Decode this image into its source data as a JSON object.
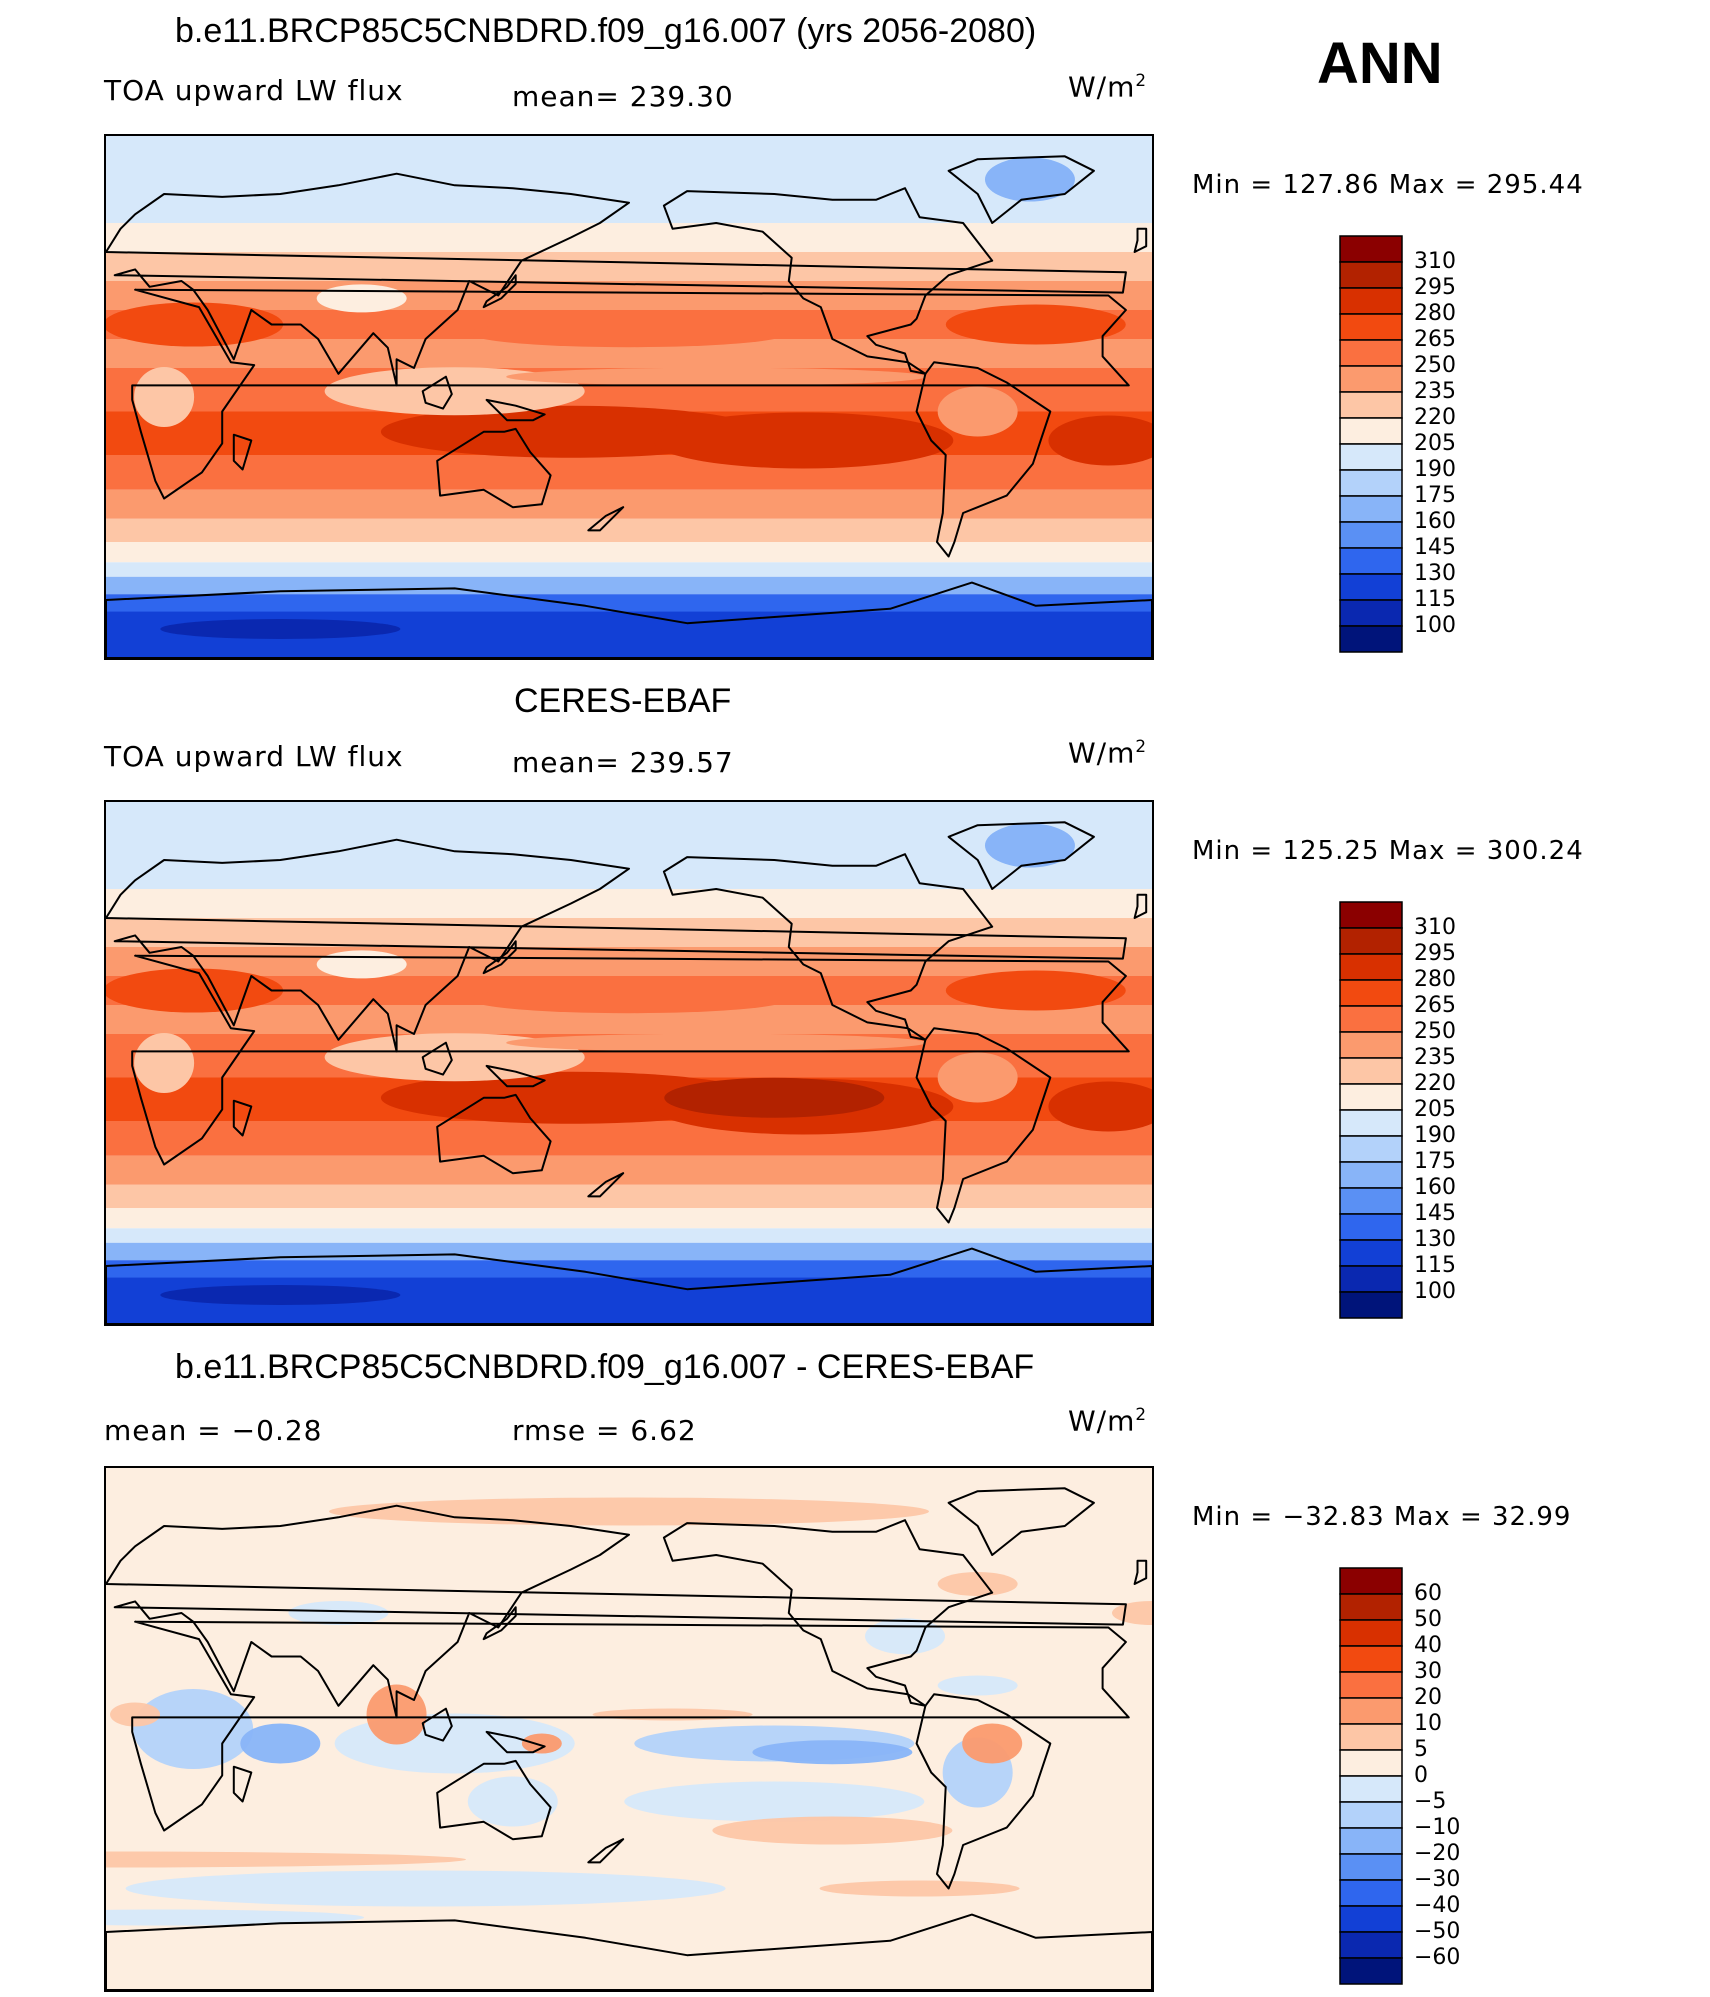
{
  "annotation": "ANN",
  "units_main": "W/m",
  "units_sup": "2",
  "panels": [
    {
      "title": "b.e11.BRCP85C5CNBDRD.f09_g16.007 (yrs 2056-2080)",
      "left_label": "TOA upward LW flux",
      "center_label": "mean= 239.30",
      "minmax": "Min  =  127.86  Max  =  295.44",
      "type": "abs"
    },
    {
      "title": "CERES-EBAF",
      "left_label": "TOA upward LW flux",
      "center_label": "mean= 239.57",
      "minmax": "Min  =  125.25  Max  =  300.24",
      "type": "abs"
    },
    {
      "title": "b.e11.BRCP85C5CNBDRD.f09_g16.007 - CERES-EBAF",
      "left_label": "mean =    −0.28",
      "center_label": "rmse =     6.62",
      "minmax": "Min  =  −32.83  Max  =    32.99",
      "type": "diff"
    }
  ],
  "colorbars": {
    "abs": {
      "labels": [
        "310",
        "295",
        "280",
        "265",
        "250",
        "235",
        "220",
        "205",
        "190",
        "175",
        "160",
        "145",
        "130",
        "115",
        "100"
      ],
      "colors": [
        "#8b0000",
        "#b22200",
        "#d83000",
        "#f24a10",
        "#fa7040",
        "#fb9a6e",
        "#fdc6a6",
        "#fdeee0",
        "#d6e8fa",
        "#b3d2fa",
        "#88b4f8",
        "#5a90f4",
        "#2f66ee",
        "#1240d6",
        "#0a28b0",
        "#00147a"
      ]
    },
    "diff": {
      "labels": [
        "60",
        "50",
        "40",
        "30",
        "20",
        "10",
        "5",
        "0",
        "−5",
        "−10",
        "−20",
        "−30",
        "−40",
        "−50",
        "−60"
      ],
      "colors": [
        "#8b0000",
        "#b22200",
        "#d83000",
        "#f24a10",
        "#fa7040",
        "#fb9a6e",
        "#fdc6a6",
        "#fdeee0",
        "#d6e8fa",
        "#b3d2fa",
        "#88b4f8",
        "#5a90f4",
        "#2f66ee",
        "#1240d6",
        "#0a28b0",
        "#00147a"
      ]
    }
  },
  "chart_data": [
    {
      "type": "heatmap",
      "title": "b.e11.BRCP85C5CNBDRD.f09_g16.007 (yrs 2056-2080)",
      "variable": "TOA upward LW flux",
      "units": "W/m2",
      "season": "ANN",
      "mean": 239.3,
      "min": 127.86,
      "max": 295.44,
      "contour_levels": [
        100,
        115,
        130,
        145,
        160,
        175,
        190,
        205,
        220,
        235,
        250,
        265,
        280,
        295,
        310
      ]
    },
    {
      "type": "heatmap",
      "title": "CERES-EBAF",
      "variable": "TOA upward LW flux",
      "units": "W/m2",
      "season": "ANN",
      "mean": 239.57,
      "min": 125.25,
      "max": 300.24,
      "contour_levels": [
        100,
        115,
        130,
        145,
        160,
        175,
        190,
        205,
        220,
        235,
        250,
        265,
        280,
        295,
        310
      ]
    },
    {
      "type": "heatmap",
      "title": "b.e11.BRCP85C5CNBDRD.f09_g16.007 - CERES-EBAF",
      "units": "W/m2",
      "season": "ANN",
      "mean": -0.28,
      "rmse": 6.62,
      "min": -32.83,
      "max": 32.99,
      "contour_levels": [
        -60,
        -50,
        -40,
        -30,
        -20,
        -10,
        -5,
        0,
        5,
        10,
        20,
        30,
        40,
        50,
        60
      ]
    }
  ]
}
